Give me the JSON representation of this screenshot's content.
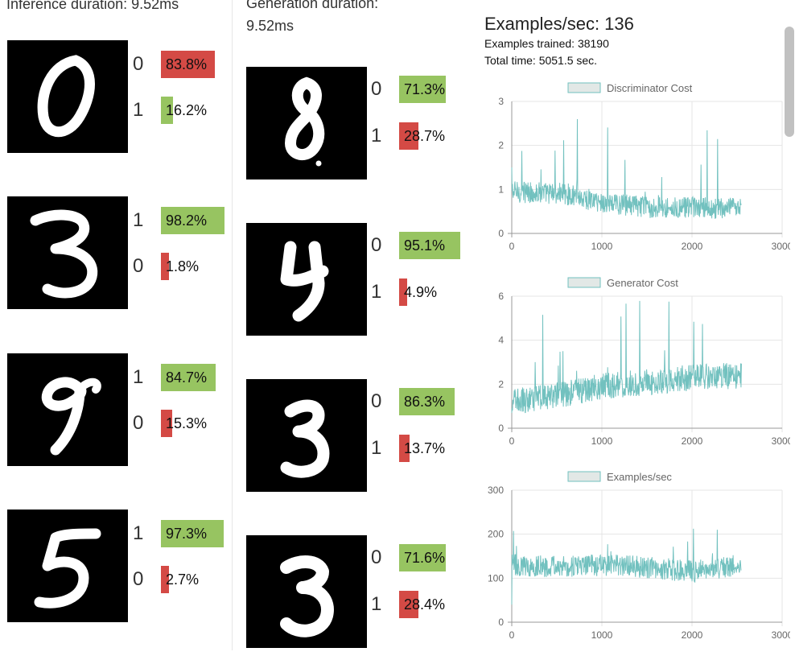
{
  "inference": {
    "header": "Inference duration: 9.52ms",
    "samples": [
      {
        "digit": "0",
        "preds": [
          {
            "label": "0",
            "pct": "83.8%",
            "value": 0.838,
            "color": "red"
          },
          {
            "label": "1",
            "pct": "16.2%",
            "value": 0.162,
            "color": "green"
          }
        ]
      },
      {
        "digit": "3",
        "preds": [
          {
            "label": "1",
            "pct": "98.2%",
            "value": 0.982,
            "color": "green"
          },
          {
            "label": "0",
            "pct": "1.8%",
            "value": 0.018,
            "color": "red"
          }
        ]
      },
      {
        "digit": "9",
        "preds": [
          {
            "label": "1",
            "pct": "84.7%",
            "value": 0.847,
            "color": "green"
          },
          {
            "label": "0",
            "pct": "15.3%",
            "value": 0.153,
            "color": "red"
          }
        ]
      },
      {
        "digit": "5",
        "preds": [
          {
            "label": "1",
            "pct": "97.3%",
            "value": 0.973,
            "color": "green"
          },
          {
            "label": "0",
            "pct": "2.7%",
            "value": 0.027,
            "color": "red"
          }
        ]
      }
    ]
  },
  "generation": {
    "header_line1": "Generation duration:",
    "header_line2": "9.52ms",
    "samples": [
      {
        "digit": "8",
        "preds": [
          {
            "label": "0",
            "pct": "71.3%",
            "value": 0.713,
            "color": "green"
          },
          {
            "label": "1",
            "pct": "28.7%",
            "value": 0.287,
            "color": "red"
          }
        ]
      },
      {
        "digit": "4",
        "preds": [
          {
            "label": "0",
            "pct": "95.1%",
            "value": 0.951,
            "color": "green"
          },
          {
            "label": "1",
            "pct": "4.9%",
            "value": 0.049,
            "color": "red"
          }
        ]
      },
      {
        "digit": "3",
        "preds": [
          {
            "label": "0",
            "pct": "86.3%",
            "value": 0.863,
            "color": "green"
          },
          {
            "label": "1",
            "pct": "13.7%",
            "value": 0.137,
            "color": "red"
          }
        ]
      },
      {
        "digit": "3",
        "preds": [
          {
            "label": "0",
            "pct": "71.6%",
            "value": 0.716,
            "color": "green"
          },
          {
            "label": "1",
            "pct": "28.4%",
            "value": 0.284,
            "color": "red"
          }
        ]
      }
    ]
  },
  "stats": {
    "examples_per_sec": "Examples/sec: 136",
    "examples_trained": "Examples trained: 38190",
    "total_time": "Total time: 5051.5 sec."
  },
  "colors": {
    "green": "#97c461",
    "red": "#d44a45",
    "line": "#72c1bf",
    "legend_fill": "#e2e8e6"
  },
  "chart_data": [
    {
      "type": "line",
      "title": "",
      "legend": [
        "Discriminator Cost"
      ],
      "xlim": [
        0,
        3000
      ],
      "ylim": [
        0,
        3
      ],
      "xticks": [
        "0",
        "1000",
        "2000",
        "3000"
      ],
      "yticks": [
        "0",
        "1",
        "2",
        "3"
      ],
      "n_points": 2550,
      "baseline": [
        [
          0,
          0.95
        ],
        [
          600,
          0.9
        ],
        [
          1000,
          0.7
        ],
        [
          1500,
          0.6
        ],
        [
          2000,
          0.58
        ],
        [
          2550,
          0.55
        ]
      ],
      "noise": 0.25,
      "spike_max": 2.65,
      "start_value": 1.5
    },
    {
      "type": "line",
      "title": "",
      "legend": [
        "Generator Cost"
      ],
      "xlim": [
        0,
        3000
      ],
      "ylim": [
        0,
        6
      ],
      "xticks": [
        "0",
        "1000",
        "2000",
        "3000"
      ],
      "yticks": [
        "0",
        "2",
        "4",
        "6"
      ],
      "n_points": 2550,
      "baseline": [
        [
          0,
          1.2
        ],
        [
          500,
          1.5
        ],
        [
          1000,
          1.9
        ],
        [
          1500,
          2.1
        ],
        [
          2000,
          2.3
        ],
        [
          2550,
          2.4
        ]
      ],
      "noise": 0.6,
      "spike_max": 5.8,
      "start_value": 0.7
    },
    {
      "type": "line",
      "title": "",
      "legend": [
        "Examples/sec"
      ],
      "xlim": [
        0,
        3000
      ],
      "ylim": [
        0,
        300
      ],
      "xticks": [
        "0",
        "1000",
        "2000",
        "3000"
      ],
      "yticks": [
        "0",
        "100",
        "200",
        "300"
      ],
      "n_points": 2550,
      "baseline": [
        [
          0,
          130
        ],
        [
          500,
          125
        ],
        [
          1000,
          130
        ],
        [
          1500,
          125
        ],
        [
          2000,
          115
        ],
        [
          2550,
          130
        ]
      ],
      "noise": 25,
      "spike_max": 215,
      "start_value": 40
    }
  ]
}
